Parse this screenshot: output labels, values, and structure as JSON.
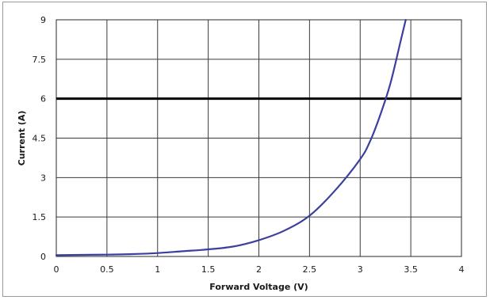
{
  "chart_data": {
    "type": "line",
    "title": "",
    "xlabel": "Forward Voltage (V)",
    "ylabel": "Current (A)",
    "xlim": [
      0,
      4
    ],
    "ylim": [
      0,
      9
    ],
    "x_ticks": [
      "0",
      "0.5",
      "1",
      "1.5",
      "2",
      "2.5",
      "3",
      "3.5",
      "4"
    ],
    "y_ticks": [
      "0",
      "1.5",
      "3",
      "4.5",
      "6",
      "7.5",
      "9"
    ],
    "grid": true,
    "legend": "none",
    "series": [
      {
        "color": "#3a3fa0",
        "x": [
          0,
          0.25,
          0.5,
          0.75,
          1.0,
          1.25,
          1.5,
          1.75,
          2.0,
          2.25,
          2.5,
          2.75,
          3.0,
          3.1,
          3.2,
          3.3,
          3.4,
          3.45
        ],
        "y": [
          0.05,
          0.06,
          0.07,
          0.09,
          0.13,
          0.2,
          0.27,
          0.38,
          0.62,
          0.98,
          1.55,
          2.5,
          3.7,
          4.4,
          5.4,
          6.6,
          8.2,
          9.0
        ]
      }
    ],
    "reference_lines": [
      {
        "y": 6,
        "color": "#000000"
      }
    ]
  }
}
